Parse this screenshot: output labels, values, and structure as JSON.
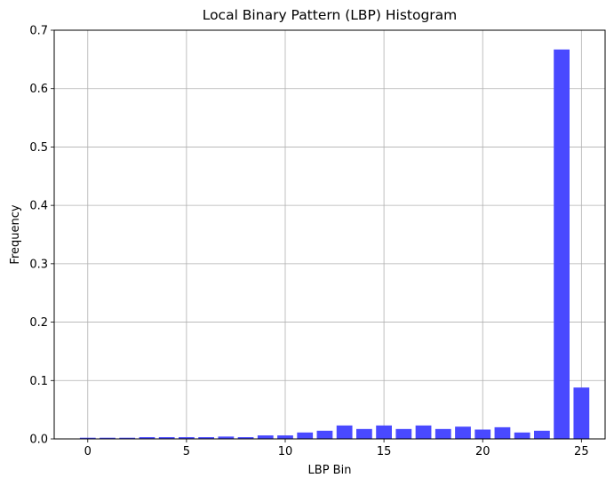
{
  "chart_data": {
    "type": "bar",
    "title": "Local Binary Pattern (LBP) Histogram",
    "xlabel": "LBP Bin",
    "ylabel": "Frequency",
    "x": [
      0,
      1,
      2,
      3,
      4,
      5,
      6,
      7,
      8,
      9,
      10,
      11,
      12,
      13,
      14,
      15,
      16,
      17,
      18,
      19,
      20,
      21,
      22,
      23,
      24,
      25
    ],
    "values": [
      0.002,
      0.002,
      0.002,
      0.003,
      0.003,
      0.003,
      0.003,
      0.004,
      0.003,
      0.006,
      0.006,
      0.011,
      0.014,
      0.023,
      0.017,
      0.023,
      0.017,
      0.023,
      0.017,
      0.021,
      0.016,
      0.02,
      0.011,
      0.014,
      0.667,
      0.088
    ],
    "xlim": [
      -1.7,
      26.2
    ],
    "ylim": [
      0,
      0.7
    ],
    "xticks": [
      0,
      5,
      10,
      15,
      20,
      25
    ],
    "xtick_labels": [
      "0",
      "5",
      "10",
      "15",
      "20",
      "25"
    ],
    "yticks": [
      0.0,
      0.1,
      0.2,
      0.3,
      0.4,
      0.5,
      0.6,
      0.7
    ],
    "ytick_labels": [
      "0.0",
      "0.1",
      "0.2",
      "0.3",
      "0.4",
      "0.5",
      "0.6",
      "0.7"
    ],
    "bar_color": "#4949ff",
    "grid": true
  }
}
